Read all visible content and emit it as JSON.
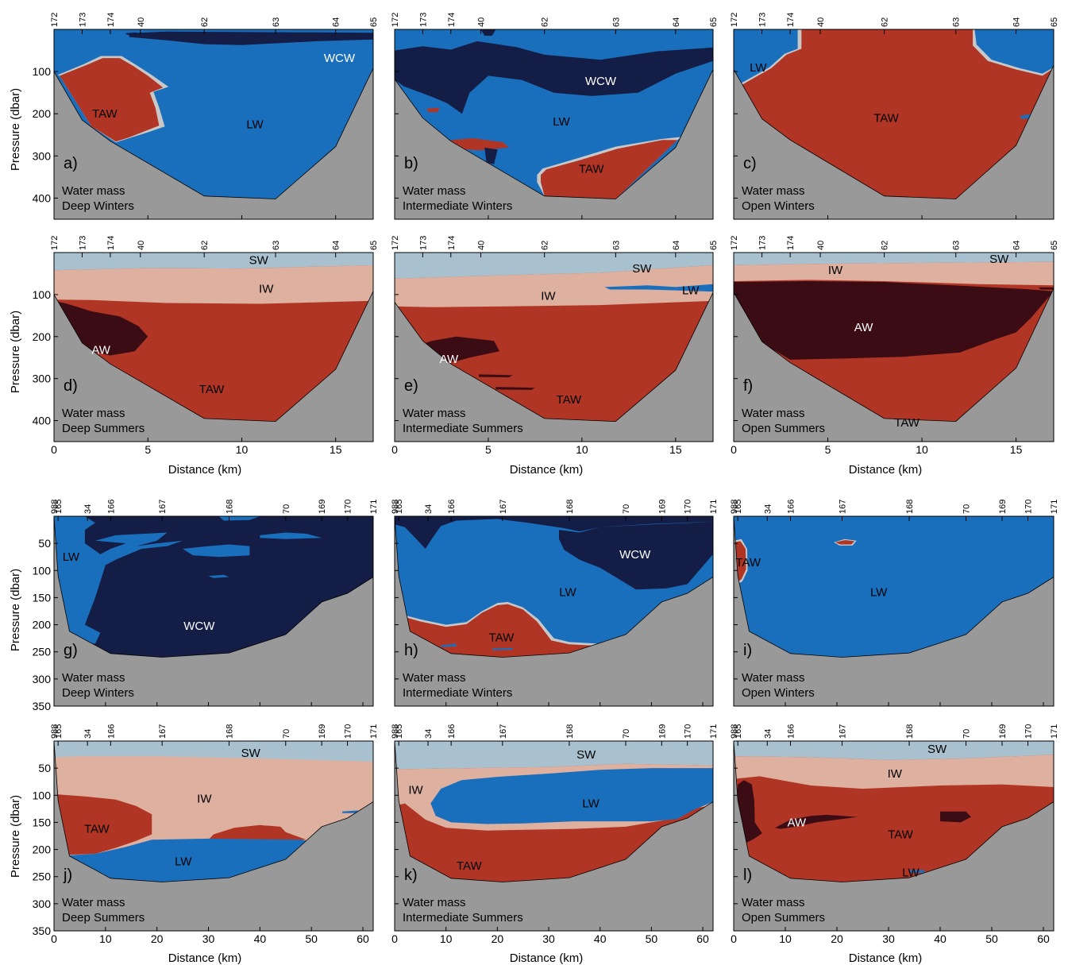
{
  "figure": {
    "ylabel": "Pressure (dbar)",
    "xlabel": "Distance (km)",
    "colors": {
      "bathymetry": "#999999",
      "SW": "#a9c1ce",
      "IW": "#ddb0a0",
      "LW": "#1a6fbd",
      "WCW": "#141d45",
      "TAW": "#b13524",
      "AW": "#3b0c14",
      "transition": "#c8c8c8"
    }
  },
  "chart_data": [
    {
      "id": "a",
      "type": "heatmap",
      "panel_label": "a)",
      "annot1": "Water mass",
      "annot2": "Deep Winters",
      "xlim": [
        0,
        17
      ],
      "ylim": [
        0,
        450
      ],
      "xticks": [
        0,
        5,
        10,
        15
      ],
      "yticks": [
        100,
        200,
        300,
        400
      ],
      "stations": [
        "172",
        "173",
        "174",
        "40",
        "62",
        "63",
        "64",
        "65"
      ],
      "station_x": [
        0,
        1.5,
        3,
        4.6,
        8,
        11.8,
        15,
        17
      ],
      "labels": [
        {
          "text": "WCW",
          "x": 15.2,
          "y": 68
        },
        {
          "text": "TAW",
          "x": 2.7,
          "y": 200
        },
        {
          "text": "LW",
          "x": 10.7,
          "y": 225
        }
      ]
    },
    {
      "id": "b",
      "type": "heatmap",
      "panel_label": "b)",
      "annot1": "Water mass",
      "annot2": "Intermediate Winters",
      "xlim": [
        0,
        17
      ],
      "ylim": [
        0,
        450
      ],
      "xticks": [
        0,
        5,
        10,
        15
      ],
      "yticks": [
        100,
        200,
        300,
        400
      ],
      "stations": [
        "172",
        "173",
        "174",
        "40",
        "62",
        "63",
        "64",
        "65"
      ],
      "station_x": [
        0,
        1.5,
        3,
        4.6,
        8,
        11.8,
        15,
        17
      ],
      "labels": [
        {
          "text": "WCW",
          "x": 11,
          "y": 122
        },
        {
          "text": "LW",
          "x": 8.9,
          "y": 218
        },
        {
          "text": "TAW",
          "x": 10.5,
          "y": 330
        }
      ]
    },
    {
      "id": "c",
      "type": "heatmap",
      "panel_label": "c)",
      "annot1": "Water mass",
      "annot2": "Open Winters",
      "xlim": [
        0,
        17
      ],
      "ylim": [
        0,
        450
      ],
      "xticks": [
        0,
        5,
        10,
        15
      ],
      "yticks": [
        100,
        200,
        300,
        400
      ],
      "stations": [
        "172",
        "173",
        "174",
        "40",
        "62",
        "63",
        "64",
        "65"
      ],
      "station_x": [
        0,
        1.5,
        3,
        4.6,
        8,
        11.8,
        15,
        17
      ],
      "labels": [
        {
          "text": "LW",
          "x": 1.3,
          "y": 90
        },
        {
          "text": "TAW",
          "x": 8.1,
          "y": 210
        }
      ]
    },
    {
      "id": "d",
      "type": "heatmap",
      "panel_label": "d)",
      "annot1": "Water mass",
      "annot2": "Deep Summers",
      "xlim": [
        0,
        17
      ],
      "ylim": [
        0,
        450
      ],
      "xticks": [
        0,
        5,
        10,
        15
      ],
      "yticks": [
        100,
        200,
        300,
        400
      ],
      "stations": [
        "172",
        "173",
        "174",
        "40",
        "62",
        "63",
        "64",
        "65"
      ],
      "station_x": [
        0,
        1.5,
        3,
        4.6,
        8,
        11.8,
        15,
        17
      ],
      "labels": [
        {
          "text": "SW",
          "x": 10.9,
          "y": 18
        },
        {
          "text": "IW",
          "x": 11.3,
          "y": 86
        },
        {
          "text": "AW",
          "x": 2.5,
          "y": 232
        },
        {
          "text": "TAW",
          "x": 8.4,
          "y": 325
        }
      ]
    },
    {
      "id": "e",
      "type": "heatmap",
      "panel_label": "e)",
      "annot1": "Water mass",
      "annot2": "Intermediate Summers",
      "xlim": [
        0,
        17
      ],
      "ylim": [
        0,
        450
      ],
      "xticks": [
        0,
        5,
        10,
        15
      ],
      "yticks": [
        100,
        200,
        300,
        400
      ],
      "stations": [
        "172",
        "173",
        "174",
        "40",
        "62",
        "63",
        "64",
        "65"
      ],
      "station_x": [
        0,
        1.5,
        3,
        4.6,
        8,
        11.8,
        15,
        17
      ],
      "labels": [
        {
          "text": "SW",
          "x": 13.2,
          "y": 38
        },
        {
          "text": "IW",
          "x": 8.2,
          "y": 103
        },
        {
          "text": "LW",
          "x": 15.8,
          "y": 90
        },
        {
          "text": "AW",
          "x": 2.9,
          "y": 253
        },
        {
          "text": "TAW",
          "x": 9.3,
          "y": 350
        }
      ]
    },
    {
      "id": "f",
      "type": "heatmap",
      "panel_label": "f)",
      "annot1": "Water mass",
      "annot2": "Open Summers",
      "xlim": [
        0,
        17
      ],
      "ylim": [
        0,
        450
      ],
      "xticks": [
        0,
        5,
        10,
        15
      ],
      "yticks": [
        100,
        200,
        300,
        400
      ],
      "stations": [
        "172",
        "173",
        "174",
        "40",
        "62",
        "63",
        "64",
        "65"
      ],
      "station_x": [
        0,
        1.5,
        3,
        4.6,
        8,
        11.8,
        15,
        17
      ],
      "labels": [
        {
          "text": "IW",
          "x": 5.4,
          "y": 42
        },
        {
          "text": "SW",
          "x": 14.1,
          "y": 15
        },
        {
          "text": "AW",
          "x": 6.9,
          "y": 178
        },
        {
          "text": "TAW",
          "x": 9.2,
          "y": 405
        }
      ]
    },
    {
      "id": "g",
      "type": "heatmap",
      "panel_label": "g)",
      "annot1": "Water mass",
      "annot2": "Deep Winters",
      "xlim": [
        0,
        62
      ],
      "ylim": [
        0,
        350
      ],
      "xticks": [
        0,
        10,
        20,
        30,
        40,
        50,
        60
      ],
      "yticks": [
        50,
        100,
        150,
        200,
        250,
        300,
        350
      ],
      "stations": [
        "988",
        "165",
        "34",
        "166",
        "167",
        "168",
        "70",
        "169",
        "170",
        "171"
      ],
      "station_x": [
        0,
        0.8,
        6.5,
        11,
        21,
        34,
        45,
        52,
        57,
        62
      ],
      "labels": [
        {
          "text": "LW",
          "x": 3.3,
          "y": 75
        },
        {
          "text": "WCW",
          "x": 28.2,
          "y": 202
        }
      ]
    },
    {
      "id": "h",
      "type": "heatmap",
      "panel_label": "h)",
      "annot1": "Water mass",
      "annot2": "Intermediate Winters",
      "xlim": [
        0,
        62
      ],
      "ylim": [
        0,
        350
      ],
      "xticks": [
        0,
        10,
        20,
        30,
        40,
        50,
        60
      ],
      "yticks": [
        50,
        100,
        150,
        200,
        250,
        300,
        350
      ],
      "stations": [
        "988",
        "165",
        "34",
        "166",
        "167",
        "168",
        "70",
        "169",
        "170",
        "171"
      ],
      "station_x": [
        0,
        0.8,
        6.5,
        11,
        21,
        34,
        45,
        52,
        57,
        62
      ],
      "labels": [
        {
          "text": "WCW",
          "x": 46.8,
          "y": 70
        },
        {
          "text": "LW",
          "x": 33.7,
          "y": 140
        },
        {
          "text": "TAW",
          "x": 20.8,
          "y": 223
        }
      ]
    },
    {
      "id": "i",
      "type": "heatmap",
      "panel_label": "i)",
      "annot1": "Water mass",
      "annot2": "Open Winters",
      "xlim": [
        0,
        62
      ],
      "ylim": [
        0,
        350
      ],
      "xticks": [
        0,
        10,
        20,
        30,
        40,
        50,
        60
      ],
      "yticks": [
        50,
        100,
        150,
        200,
        250,
        300,
        350
      ],
      "stations": [
        "988",
        "165",
        "34",
        "166",
        "167",
        "168",
        "70",
        "169",
        "170",
        "171"
      ],
      "station_x": [
        0,
        0.8,
        6.5,
        11,
        21,
        34,
        45,
        52,
        57,
        62
      ],
      "labels": [
        {
          "text": "TAW",
          "x": 2.8,
          "y": 85
        },
        {
          "text": "LW",
          "x": 28.1,
          "y": 140
        }
      ]
    },
    {
      "id": "j",
      "type": "heatmap",
      "panel_label": "j)",
      "annot1": "Water mass",
      "annot2": "Deep Summers",
      "xlim": [
        0,
        62
      ],
      "ylim": [
        0,
        350
      ],
      "xticks": [
        0,
        10,
        20,
        30,
        40,
        50,
        60
      ],
      "yticks": [
        50,
        100,
        150,
        200,
        250,
        300,
        350
      ],
      "stations": [
        "988",
        "165",
        "34",
        "166",
        "167",
        "168",
        "70",
        "169",
        "170",
        "171"
      ],
      "station_x": [
        0,
        0.8,
        6.5,
        11,
        21,
        34,
        45,
        52,
        57,
        62
      ],
      "labels": [
        {
          "text": "SW",
          "x": 38.2,
          "y": 22
        },
        {
          "text": "IW",
          "x": 29.2,
          "y": 106
        },
        {
          "text": "TAW",
          "x": 8.3,
          "y": 162
        },
        {
          "text": "LW",
          "x": 25.1,
          "y": 222
        }
      ]
    },
    {
      "id": "k",
      "type": "heatmap",
      "panel_label": "k)",
      "annot1": "Water mass",
      "annot2": "Intermediate Summers",
      "xlim": [
        0,
        62
      ],
      "ylim": [
        0,
        350
      ],
      "xticks": [
        0,
        10,
        20,
        30,
        40,
        50,
        60
      ],
      "yticks": [
        50,
        100,
        150,
        200,
        250,
        300,
        350
      ],
      "stations": [
        "988",
        "165",
        "34",
        "166",
        "167",
        "168",
        "70",
        "169",
        "170",
        "171"
      ],
      "station_x": [
        0,
        0.8,
        6.5,
        11,
        21,
        34,
        45,
        52,
        57,
        62
      ],
      "labels": [
        {
          "text": "SW",
          "x": 37.3,
          "y": 25
        },
        {
          "text": "IW",
          "x": 4.1,
          "y": 90
        },
        {
          "text": "LW",
          "x": 38.2,
          "y": 115
        },
        {
          "text": "TAW",
          "x": 14.5,
          "y": 230
        }
      ]
    },
    {
      "id": "l",
      "type": "heatmap",
      "panel_label": "l)",
      "annot1": "Water mass",
      "annot2": "Open Summers",
      "xlim": [
        0,
        62
      ],
      "ylim": [
        0,
        350
      ],
      "xticks": [
        0,
        10,
        20,
        30,
        40,
        50,
        60
      ],
      "yticks": [
        50,
        100,
        150,
        200,
        250,
        300,
        350
      ],
      "stations": [
        "988",
        "165",
        "34",
        "166",
        "167",
        "168",
        "70",
        "169",
        "170",
        "171"
      ],
      "station_x": [
        0,
        0.8,
        6.5,
        11,
        21,
        34,
        45,
        52,
        57,
        62
      ],
      "labels": [
        {
          "text": "SW",
          "x": 39.4,
          "y": 15
        },
        {
          "text": "IW",
          "x": 31.2,
          "y": 60
        },
        {
          "text": "AW",
          "x": 12.2,
          "y": 150
        },
        {
          "text": "TAW",
          "x": 32.3,
          "y": 172
        },
        {
          "text": "LW",
          "x": 34.3,
          "y": 242
        }
      ]
    }
  ]
}
